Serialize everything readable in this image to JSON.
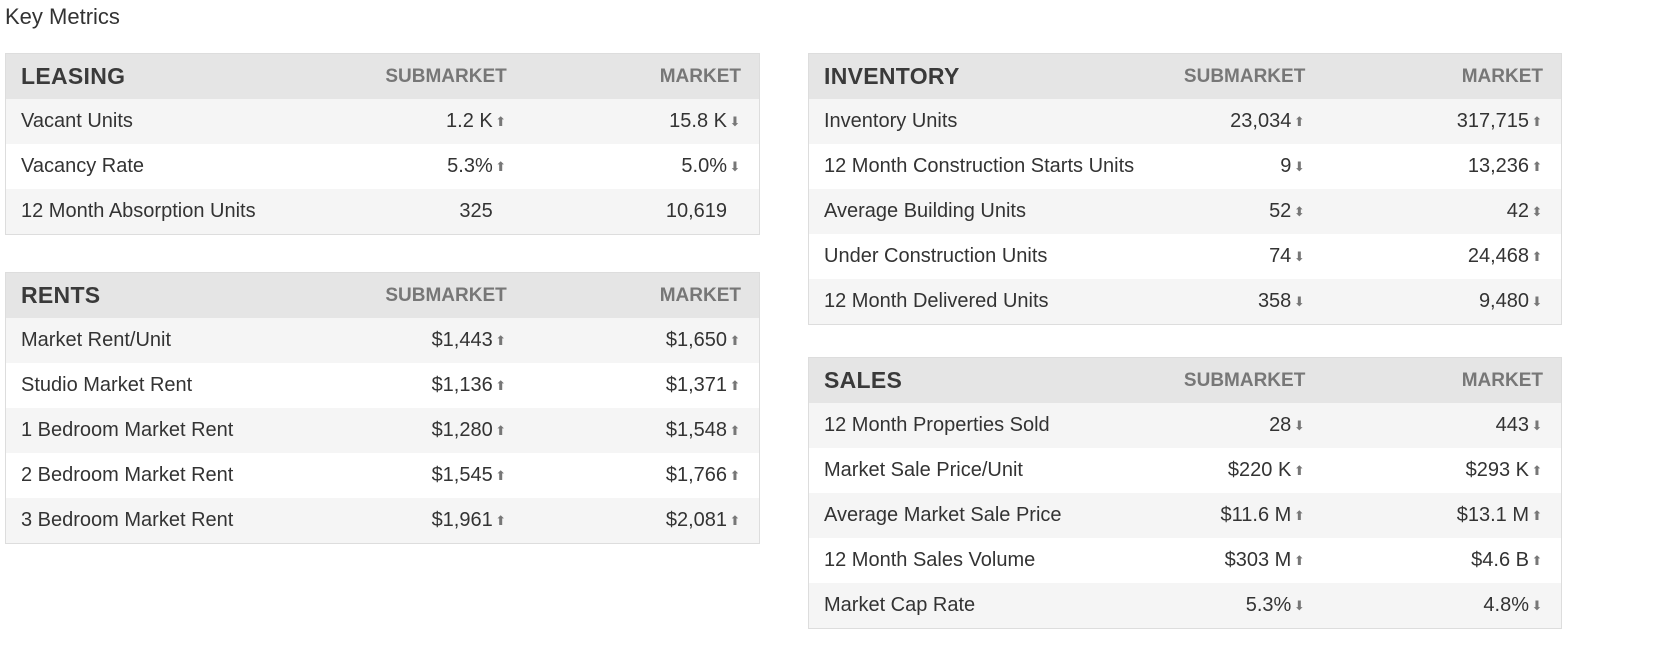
{
  "page_title": "Key Metrics",
  "arrow_glyphs": {
    "up": "⬆",
    "down": "⬇",
    "both": "⬍",
    "none": ""
  },
  "leasing": {
    "title": "LEASING",
    "col_submarket": "SUBMARKET",
    "col_market": "MARKET",
    "rows": [
      {
        "label": "Vacant Units",
        "submarket": "1.2 K",
        "sub_trend": "up",
        "market": "15.8 K",
        "mkt_trend": "down"
      },
      {
        "label": "Vacancy Rate",
        "submarket": "5.3%",
        "sub_trend": "up",
        "market": "5.0%",
        "mkt_trend": "down"
      },
      {
        "label": "12 Month Absorption Units",
        "submarket": "325",
        "sub_trend": "none",
        "market": "10,619",
        "mkt_trend": "none"
      }
    ]
  },
  "rents": {
    "title": "RENTS",
    "col_submarket": "SUBMARKET",
    "col_market": "MARKET",
    "rows": [
      {
        "label": "Market Rent/Unit",
        "submarket": "$1,443",
        "sub_trend": "up",
        "market": "$1,650",
        "mkt_trend": "up"
      },
      {
        "label": "Studio Market Rent",
        "submarket": "$1,136",
        "sub_trend": "up",
        "market": "$1,371",
        "mkt_trend": "up"
      },
      {
        "label": "1 Bedroom Market Rent",
        "submarket": "$1,280",
        "sub_trend": "up",
        "market": "$1,548",
        "mkt_trend": "up"
      },
      {
        "label": "2 Bedroom Market Rent",
        "submarket": "$1,545",
        "sub_trend": "up",
        "market": "$1,766",
        "mkt_trend": "up"
      },
      {
        "label": "3 Bedroom Market Rent",
        "submarket": "$1,961",
        "sub_trend": "up",
        "market": "$2,081",
        "mkt_trend": "up"
      }
    ]
  },
  "inventory": {
    "title": "INVENTORY",
    "col_submarket": "SUBMARKET",
    "col_market": "MARKET",
    "rows": [
      {
        "label": "Inventory Units",
        "submarket": "23,034",
        "sub_trend": "up",
        "market": "317,715",
        "mkt_trend": "up"
      },
      {
        "label": "12 Month Construction Starts Units",
        "submarket": "9",
        "sub_trend": "down",
        "market": "13,236",
        "mkt_trend": "up"
      },
      {
        "label": "Average Building Units",
        "submarket": "52",
        "sub_trend": "both",
        "market": "42",
        "mkt_trend": "both"
      },
      {
        "label": "Under Construction Units",
        "submarket": "74",
        "sub_trend": "down",
        "market": "24,468",
        "mkt_trend": "up"
      },
      {
        "label": "12 Month Delivered Units",
        "submarket": "358",
        "sub_trend": "down",
        "market": "9,480",
        "mkt_trend": "down"
      }
    ]
  },
  "sales": {
    "title": "SALES",
    "col_submarket": "SUBMARKET",
    "col_market": "MARKET",
    "rows": [
      {
        "label": "12 Month Properties Sold",
        "submarket": "28",
        "sub_trend": "down",
        "market": "443",
        "mkt_trend": "down"
      },
      {
        "label": "Market Sale Price/Unit",
        "submarket": "$220 K",
        "sub_trend": "up",
        "market": "$293 K",
        "mkt_trend": "up"
      },
      {
        "label": "Average Market Sale Price",
        "submarket": "$11.6 M",
        "sub_trend": "up",
        "market": "$13.1 M",
        "mkt_trend": "up"
      },
      {
        "label": "12 Month Sales Volume",
        "submarket": "$303 M",
        "sub_trend": "up",
        "market": "$4.6 B",
        "mkt_trend": "up"
      },
      {
        "label": "Market Cap Rate",
        "submarket": "5.3%",
        "sub_trend": "down",
        "market": "4.8%",
        "mkt_trend": "down"
      }
    ]
  }
}
